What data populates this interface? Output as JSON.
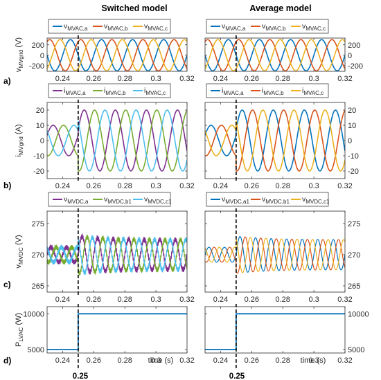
{
  "column_titles": [
    "Switched model",
    "Average model"
  ],
  "row_labels": [
    "a)",
    "b)",
    "c)",
    "d)"
  ],
  "xlabel": "time (s)",
  "event_marker_label": "0.25",
  "colors": {
    "a": "#0072BD",
    "b": "#D95319",
    "c": "#EDB120",
    "purple": "#7E2F8E",
    "green": "#77AC30",
    "cyan": "#4DBEEE",
    "dark": "#262626"
  },
  "chart_data": [
    {
      "id": "a",
      "type": "line",
      "title": "",
      "ylabel": "v",
      "ylabel_sub": "MVgrid",
      "ylabel_unit": " (V)",
      "xlim": [
        0.23,
        0.32
      ],
      "ylim": [
        -310,
        330
      ],
      "xticks": [
        "0.24",
        "0.26",
        "0.28",
        "0.3",
        "0.32"
      ],
      "yticks": [
        "-200",
        "0",
        "200"
      ],
      "right_axis_ticks": true,
      "legend": [
        {
          "main": "v",
          "sub": "MVAC,a",
          "color": "#0072BD"
        },
        {
          "main": "v",
          "sub": "MVAC,b",
          "color": "#D95319"
        },
        {
          "main": "v",
          "sub": "MVAC,c",
          "color": "#EDB120"
        }
      ],
      "waveform": {
        "kind": "sine3",
        "frequency_hz": 50,
        "amplitude_before": 300,
        "amplitude_after": 300,
        "phase_deg": [
          0,
          -120,
          120
        ]
      }
    },
    {
      "id": "b",
      "type": "line",
      "title": "",
      "ylabel": "i",
      "ylabel_sub": "MVgrid",
      "ylabel_unit": " (A)",
      "xlim": [
        0.23,
        0.32
      ],
      "ylim": [
        -25,
        25
      ],
      "xticks": [
        "0.24",
        "0.26",
        "0.28",
        "0.3",
        "0.32"
      ],
      "yticks": [
        "-20",
        "-10",
        "0",
        "10",
        "20"
      ],
      "right_axis_ticks": true,
      "legend": [
        {
          "main": "i",
          "sub": "MVAC,a",
          "color": "#7E2F8E"
        },
        {
          "main": "i",
          "sub": "MVAC,b",
          "color": "#77AC30"
        },
        {
          "main": "i",
          "sub": "MVAC,c",
          "color": "#4DBEEE"
        }
      ],
      "legend_right": [
        {
          "main": "i",
          "sub": "MVAC,a",
          "color": "#0072BD"
        },
        {
          "main": "i",
          "sub": "MVAC,b",
          "color": "#D95319"
        },
        {
          "main": "i",
          "sub": "MVAC,c",
          "color": "#EDB120"
        }
      ],
      "waveform": {
        "kind": "sine3",
        "frequency_hz": 50,
        "amplitude_before": 10,
        "amplitude_after": 20,
        "phase_deg": [
          200,
          80,
          -40
        ]
      }
    },
    {
      "id": "c",
      "type": "line",
      "title": "",
      "ylabel": "v",
      "ylabel_sub": "MVDC",
      "ylabel_unit": " (V)",
      "xlim": [
        0.23,
        0.32
      ],
      "ylim": [
        264,
        277
      ],
      "xticks": [
        "0.24",
        "0.26",
        "0.28",
        "0.3",
        "0.32"
      ],
      "yticks": [
        "265",
        "270",
        "275"
      ],
      "right_axis_ticks": true,
      "legend": [
        {
          "main": "v",
          "sub": "MVDC,a",
          "color": "#7E2F8E"
        },
        {
          "main": "v",
          "sub": "MVDC,b1",
          "color": "#77AC30"
        },
        {
          "main": "v",
          "sub": "MVDC,c1",
          "color": "#4DBEEE"
        }
      ],
      "legend_right": [
        {
          "main": "v",
          "sub": "MVDC,a1",
          "color": "#0072BD"
        },
        {
          "main": "v",
          "sub": "MVDC,b1",
          "color": "#D95319"
        },
        {
          "main": "v",
          "sub": "MVDC,c1",
          "color": "#EDB120"
        }
      ],
      "waveform": {
        "kind": "dc_ripple",
        "frequency_hz": 100,
        "mean": 270,
        "ripple_before": 1.2,
        "ripple_after": 3.0,
        "decay_to": 2.4,
        "phase_deg": [
          0,
          -120,
          120
        ]
      }
    },
    {
      "id": "d",
      "type": "line",
      "title": "",
      "ylabel": "P",
      "ylabel_sub": "LVAC",
      "ylabel_unit": " (W)",
      "xlim": [
        0.23,
        0.32
      ],
      "ylim": [
        4500,
        11000
      ],
      "xticks": [
        "0.24",
        "0.26",
        "0.28",
        "0.3",
        "0.32"
      ],
      "yticks": [
        "5000",
        "10000"
      ],
      "right_axis_ticks": true,
      "legend": [],
      "series": [
        {
          "step_time": 0.25,
          "before": 5000,
          "after": 10000,
          "color": "#0072BD"
        }
      ]
    }
  ],
  "step_time": 0.25
}
